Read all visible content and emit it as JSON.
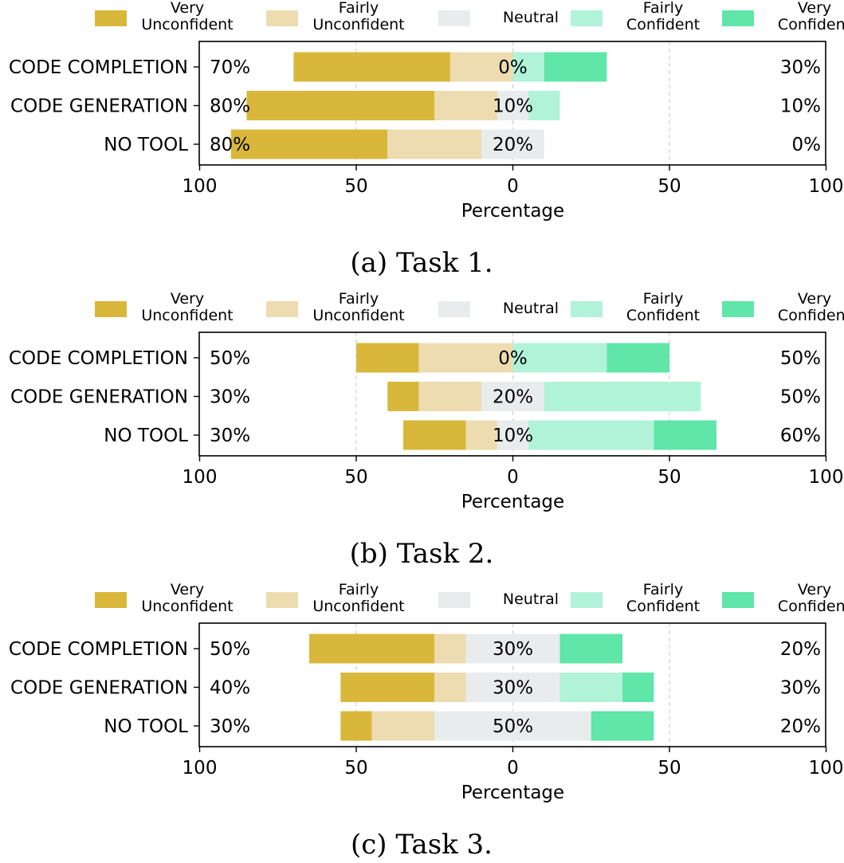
{
  "colors": {
    "very_unconfident": "#d9b73a",
    "fairly_unconfident": "#eddcaf",
    "neutral": "#e8ecec",
    "fairly_confident": "#b0f3d9",
    "very_confident": "#5fe6a8"
  },
  "chart_data": [
    {
      "type": "bar",
      "subtype": "diverging-stacked-horizontal",
      "caption": "(a) Task 1.",
      "xlabel": "Percentage",
      "xlim": [
        -100,
        100
      ],
      "xtick_values": [
        -100,
        -50,
        0,
        50,
        100
      ],
      "xtick_labels": [
        "100",
        "50",
        "0",
        "50",
        "100"
      ],
      "legend": [
        {
          "line1": "Very",
          "line2": "Unconfident"
        },
        {
          "line1": "Fairly",
          "line2": "Unconfident"
        },
        {
          "line1": "Neutral",
          "line2": ""
        },
        {
          "line1": "Fairly",
          "line2": "Confident"
        },
        {
          "line1": "Very",
          "line2": "Confident"
        }
      ],
      "categories": [
        "CODE COMPLETION",
        "CODE GENERATION",
        "NO TOOL"
      ],
      "series": [
        {
          "name": "Very Unconfident",
          "values": [
            50,
            60,
            50
          ]
        },
        {
          "name": "Fairly Unconfident",
          "values": [
            20,
            20,
            30
          ]
        },
        {
          "name": "Neutral",
          "values": [
            0,
            10,
            20
          ]
        },
        {
          "name": "Fairly Confident",
          "values": [
            10,
            10,
            0
          ]
        },
        {
          "name": "Very Confident",
          "values": [
            20,
            0,
            0
          ]
        }
      ],
      "left_labels": [
        "70%",
        "80%",
        "80%"
      ],
      "center_labels": [
        "0%",
        "10%",
        "20%"
      ],
      "right_labels": [
        "30%",
        "10%",
        "0%"
      ]
    },
    {
      "type": "bar",
      "subtype": "diverging-stacked-horizontal",
      "caption": "(b) Task 2.",
      "xlabel": "Percentage",
      "xlim": [
        -100,
        100
      ],
      "xtick_values": [
        -100,
        -50,
        0,
        50,
        100
      ],
      "xtick_labels": [
        "100",
        "50",
        "0",
        "50",
        "100"
      ],
      "legend": [
        {
          "line1": "Very",
          "line2": "Unconfident"
        },
        {
          "line1": "Fairly",
          "line2": "Unconfident"
        },
        {
          "line1": "Neutral",
          "line2": ""
        },
        {
          "line1": "Fairly",
          "line2": "Confident"
        },
        {
          "line1": "Very",
          "line2": "Confident"
        }
      ],
      "categories": [
        "CODE COMPLETION",
        "CODE GENERATION",
        "NO TOOL"
      ],
      "series": [
        {
          "name": "Very Unconfident",
          "values": [
            20,
            10,
            20
          ]
        },
        {
          "name": "Fairly Unconfident",
          "values": [
            30,
            20,
            10
          ]
        },
        {
          "name": "Neutral",
          "values": [
            0,
            20,
            10
          ]
        },
        {
          "name": "Fairly Confident",
          "values": [
            30,
            50,
            40
          ]
        },
        {
          "name": "Very Confident",
          "values": [
            20,
            0,
            20
          ]
        }
      ],
      "left_labels": [
        "50%",
        "30%",
        "30%"
      ],
      "center_labels": [
        "0%",
        "20%",
        "10%"
      ],
      "right_labels": [
        "50%",
        "50%",
        "60%"
      ]
    },
    {
      "type": "bar",
      "subtype": "diverging-stacked-horizontal",
      "caption": "(c) Task 3.",
      "xlabel": "Percentage",
      "xlim": [
        -100,
        100
      ],
      "xtick_values": [
        -100,
        -50,
        0,
        50,
        100
      ],
      "xtick_labels": [
        "100",
        "50",
        "0",
        "50",
        "100"
      ],
      "legend": [
        {
          "line1": "Very",
          "line2": "Unconfident"
        },
        {
          "line1": "Fairly",
          "line2": "Unconfident"
        },
        {
          "line1": "Neutral",
          "line2": ""
        },
        {
          "line1": "Fairly",
          "line2": "Confident"
        },
        {
          "line1": "Very",
          "line2": "Confident"
        }
      ],
      "categories": [
        "CODE COMPLETION",
        "CODE GENERATION",
        "NO TOOL"
      ],
      "series": [
        {
          "name": "Very Unconfident",
          "values": [
            40,
            30,
            10
          ]
        },
        {
          "name": "Fairly Unconfident",
          "values": [
            10,
            10,
            20
          ]
        },
        {
          "name": "Neutral",
          "values": [
            30,
            30,
            50
          ]
        },
        {
          "name": "Fairly Confident",
          "values": [
            0,
            20,
            0
          ]
        },
        {
          "name": "Very Confident",
          "values": [
            20,
            10,
            20
          ]
        }
      ],
      "left_labels": [
        "50%",
        "40%",
        "30%"
      ],
      "center_labels": [
        "30%",
        "30%",
        "50%"
      ],
      "right_labels": [
        "20%",
        "30%",
        "20%"
      ]
    }
  ]
}
